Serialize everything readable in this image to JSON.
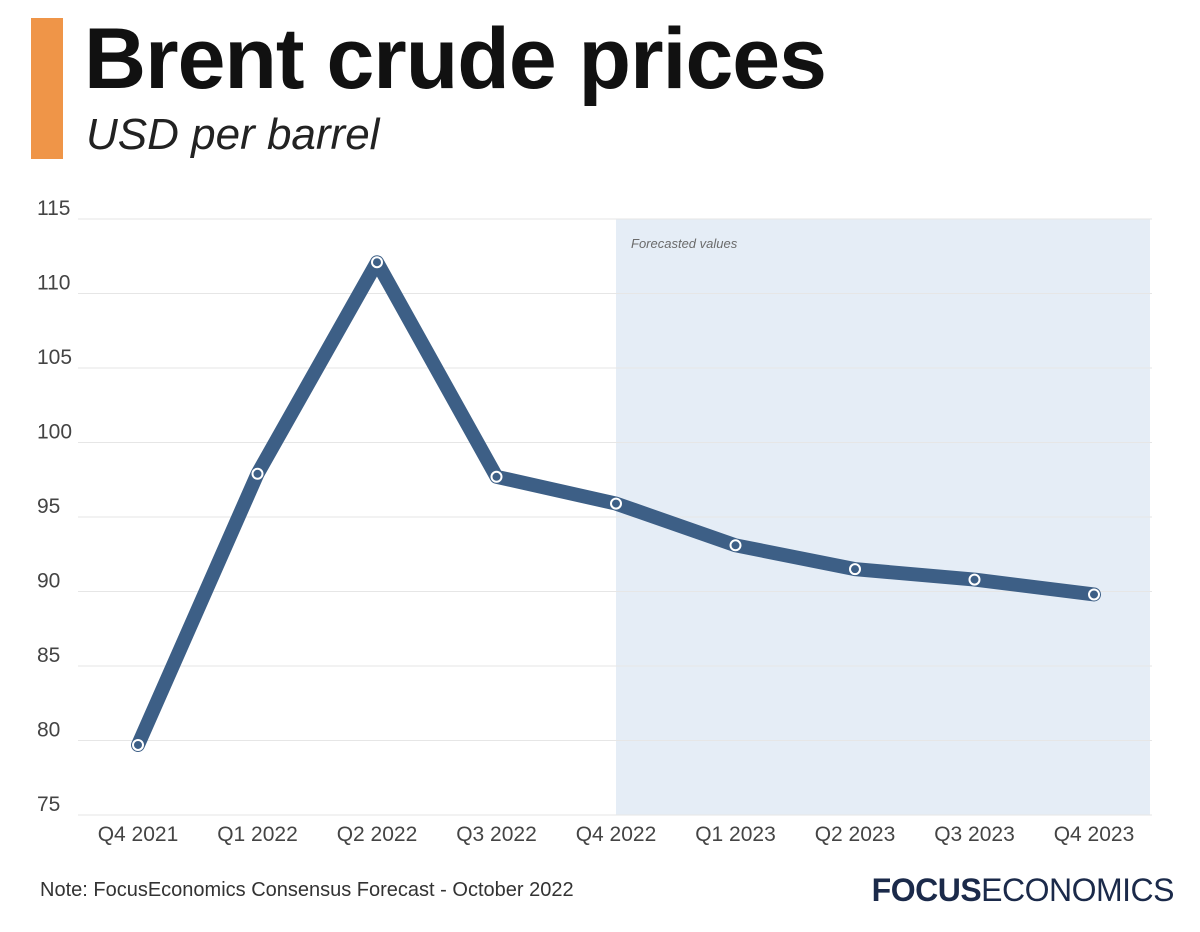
{
  "header": {
    "title": "Brent crude prices",
    "subtitle": "USD per barrel",
    "accent_color": "#ef9548"
  },
  "footer": {
    "note": "Note: FocusEconomics Consensus Forecast - October 2022",
    "logo_bold": "FOCUS",
    "logo_thin": "ECONOMICS"
  },
  "chart_data": {
    "type": "line",
    "title": "Brent crude prices",
    "subtitle": "USD per barrel",
    "categories": [
      "Q4 2021",
      "Q1 2022",
      "Q2 2022",
      "Q3 2022",
      "Q4 2022",
      "Q1 2023",
      "Q2 2023",
      "Q3 2023",
      "Q4 2023"
    ],
    "series": [
      {
        "values": [
          79.7,
          97.9,
          112.1,
          97.7,
          95.9,
          93.1,
          91.5,
          90.8,
          89.8
        ],
        "color": "#3d5f86"
      }
    ],
    "ylim": [
      75,
      115
    ],
    "yticks": [
      75,
      80,
      85,
      90,
      95,
      100,
      105,
      110,
      115
    ],
    "grid": true,
    "forecast_region": {
      "label": "Forecasted values",
      "from_category": "Q4 2022",
      "to_category": "Q4 2023",
      "color": "#e5edf6"
    }
  }
}
